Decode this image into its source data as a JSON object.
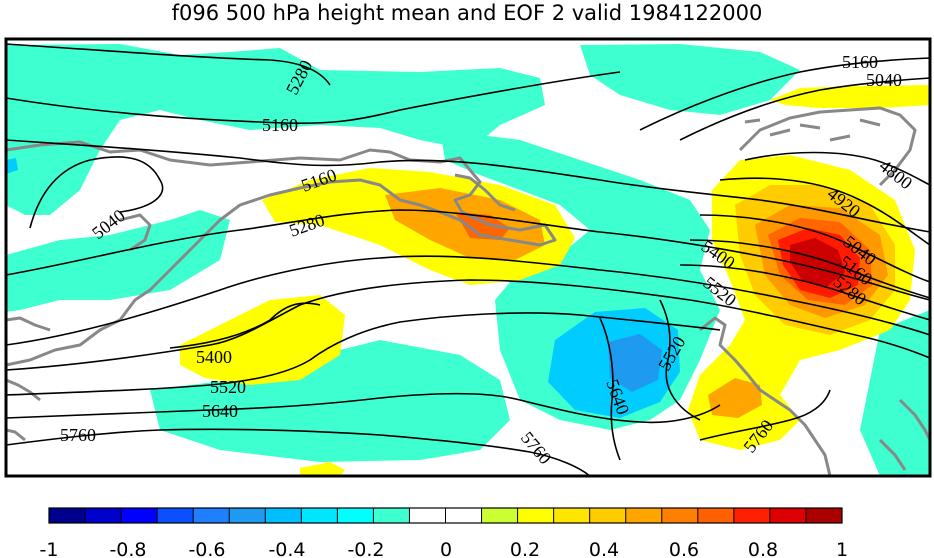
{
  "title": "f096 500 hPa height mean and EOF 2 valid 1984122000",
  "colors": {
    "neg_light": "#3effd0",
    "neg_mid": "#00ccff",
    "neg_strong": "#1e9bf0",
    "pos_yellow": "#ffff00",
    "pos_gold": "#ffcc00",
    "pos_orange": "#ff9900",
    "pos_dark_orange": "#ff6600",
    "pos_red": "#ff1a00",
    "pos_dark_red": "#cc0000",
    "coastline": "#888888",
    "contour": "#000000"
  },
  "contour_labels": [
    "5280",
    "5160",
    "5040",
    "5160",
    "5280",
    "5160",
    "5040",
    "4800",
    "4920",
    "5040",
    "5160",
    "5280",
    "5400",
    "5520",
    "5400",
    "5520",
    "5640",
    "5760",
    "5520",
    "5640",
    "5760",
    "5760"
  ],
  "colorbar": {
    "colors": [
      "#00008f",
      "#0000cd",
      "#0000ff",
      "#0a50ff",
      "#1f7fff",
      "#1e9bf0",
      "#00bfff",
      "#00e6ff",
      "#00ffff",
      "#3effd0",
      "#ffffff",
      "#ffffff",
      "#ccff33",
      "#ffff00",
      "#ffe600",
      "#ffcc00",
      "#ffa500",
      "#ff8000",
      "#ff6000",
      "#ff2000",
      "#dd0000",
      "#aa0000"
    ],
    "tick_labels": [
      "-1",
      "-0.8",
      "-0.6",
      "-0.4",
      "-0.2",
      "0",
      "0.2",
      "0.4",
      "0.6",
      "0.8",
      "1"
    ]
  }
}
